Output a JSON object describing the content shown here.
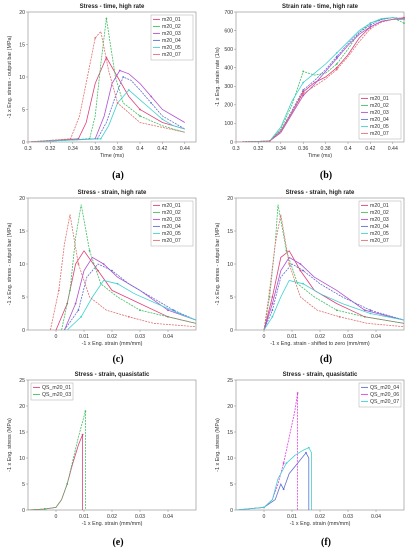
{
  "chart_data": [
    {
      "id": "a",
      "type": "line",
      "caption": "(a)",
      "title": "Stress - time, high rate",
      "xlabel": "Time (ms)",
      "ylabel": "-1 x Eng. stress - output bar (MPa)",
      "xlim": [
        0.3,
        0.45
      ],
      "ylim": [
        0,
        20
      ],
      "xticks": [
        0.3,
        0.32,
        0.34,
        0.36,
        0.38,
        0.4,
        0.42,
        0.44
      ],
      "xtick_labels": [
        "0.3",
        "0.32",
        "0.34",
        "0.36",
        "0.38",
        "0.4",
        "0.42",
        "0.44"
      ],
      "yticks": [
        0,
        5,
        10,
        15,
        20
      ],
      "ytick_labels": [
        "0",
        "5",
        "10",
        "15",
        "20"
      ],
      "legend_position": "top-right",
      "series": [
        {
          "name": "m20_01",
          "color": "#e0407a",
          "x": [
            0.3,
            0.345,
            0.352,
            0.36,
            0.37,
            0.38,
            0.39,
            0.4,
            0.42,
            0.44
          ],
          "y": [
            0,
            0.5,
            3,
            9,
            13,
            10,
            7,
            5,
            3,
            2
          ]
        },
        {
          "name": "m20_02",
          "color": "#3fbf5f",
          "x": [
            0.3,
            0.355,
            0.36,
            0.365,
            0.37,
            0.378,
            0.385,
            0.4,
            0.42,
            0.44
          ],
          "y": [
            0,
            0.5,
            4,
            12,
            19,
            10,
            6,
            4,
            2.5,
            1.5
          ]
        },
        {
          "name": "m20_03",
          "color": "#b050d0",
          "x": [
            0.3,
            0.36,
            0.368,
            0.375,
            0.382,
            0.39,
            0.4,
            0.41,
            0.42,
            0.44
          ],
          "y": [
            0,
            0.5,
            4,
            9,
            11,
            10.5,
            9,
            7,
            5,
            3
          ]
        },
        {
          "name": "m20_04",
          "color": "#6070d0",
          "x": [
            0.3,
            0.362,
            0.37,
            0.378,
            0.385,
            0.392,
            0.4,
            0.41,
            0.42,
            0.44
          ],
          "y": [
            0,
            0.5,
            3,
            7,
            10,
            9.5,
            8,
            6,
            4,
            2
          ]
        },
        {
          "name": "m20_05",
          "color": "#40d0d0",
          "x": [
            0.3,
            0.365,
            0.372,
            0.38,
            0.39,
            0.4,
            0.41,
            0.42,
            0.43,
            0.44
          ],
          "y": [
            0,
            0.5,
            2.5,
            6,
            8,
            6.5,
            5,
            3.5,
            2.5,
            2
          ]
        },
        {
          "name": "m20_07",
          "color": "#e07070",
          "x": [
            0.3,
            0.338,
            0.346,
            0.353,
            0.36,
            0.365,
            0.372,
            0.38,
            0.4,
            0.44
          ],
          "y": [
            0,
            0.5,
            4,
            10,
            16,
            17,
            11,
            6,
            3,
            1.5
          ]
        }
      ]
    },
    {
      "id": "b",
      "type": "line",
      "caption": "(b)",
      "title": "Strain rate - time, high rate",
      "xlabel": "Time (ms)",
      "ylabel": "-1 x Eng. strain rate (1/s)",
      "xlim": [
        0.3,
        0.45
      ],
      "ylim": [
        0,
        700
      ],
      "xticks": [
        0.3,
        0.32,
        0.34,
        0.36,
        0.38,
        0.4,
        0.42,
        0.44
      ],
      "xtick_labels": [
        "0.3",
        "0.32",
        "0.34",
        "0.36",
        "0.38",
        "0.4",
        "0.42",
        "0.44"
      ],
      "yticks": [
        0,
        100,
        200,
        300,
        400,
        500,
        600,
        700
      ],
      "ytick_labels": [
        "0",
        "100",
        "200",
        "300",
        "400",
        "500",
        "600",
        "700"
      ],
      "legend_position": "bottom-right",
      "series": [
        {
          "name": "m20_01",
          "color": "#e0407a",
          "x": [
            0.3,
            0.33,
            0.34,
            0.35,
            0.36,
            0.37,
            0.38,
            0.39,
            0.4,
            0.41,
            0.42,
            0.43,
            0.44,
            0.45
          ],
          "y": [
            0,
            5,
            60,
            160,
            270,
            320,
            350,
            400,
            470,
            560,
            620,
            650,
            660,
            670
          ]
        },
        {
          "name": "m20_02",
          "color": "#3fbf5f",
          "x": [
            0.3,
            0.33,
            0.34,
            0.35,
            0.36,
            0.37,
            0.38,
            0.39,
            0.4,
            0.41,
            0.42,
            0.43,
            0.44,
            0.45
          ],
          "y": [
            0,
            5,
            70,
            200,
            380,
            360,
            370,
            420,
            500,
            590,
            640,
            660,
            670,
            640
          ]
        },
        {
          "name": "m20_03",
          "color": "#b050d0",
          "x": [
            0.3,
            0.33,
            0.34,
            0.35,
            0.36,
            0.37,
            0.38,
            0.39,
            0.4,
            0.41,
            0.42,
            0.43,
            0.44,
            0.45
          ],
          "y": [
            0,
            5,
            50,
            150,
            250,
            310,
            380,
            450,
            520,
            580,
            620,
            650,
            660,
            660
          ]
        },
        {
          "name": "m20_04",
          "color": "#6070d0",
          "x": [
            0.3,
            0.33,
            0.34,
            0.35,
            0.36,
            0.37,
            0.38,
            0.39,
            0.4,
            0.41,
            0.42,
            0.43,
            0.44,
            0.45
          ],
          "y": [
            0,
            5,
            60,
            170,
            280,
            330,
            390,
            460,
            530,
            590,
            630,
            660,
            670,
            665
          ]
        },
        {
          "name": "m20_05",
          "color": "#40d0d0",
          "x": [
            0.3,
            0.33,
            0.34,
            0.35,
            0.36,
            0.37,
            0.38,
            0.39,
            0.4,
            0.41,
            0.42,
            0.43,
            0.44,
            0.45
          ],
          "y": [
            0,
            5,
            80,
            220,
            320,
            370,
            420,
            480,
            540,
            600,
            640,
            665,
            670,
            660
          ]
        },
        {
          "name": "m20_07",
          "color": "#e07070",
          "x": [
            0.3,
            0.33,
            0.34,
            0.35,
            0.36,
            0.37,
            0.38,
            0.39,
            0.4,
            0.41,
            0.42,
            0.43,
            0.44,
            0.45
          ],
          "y": [
            0,
            5,
            55,
            160,
            260,
            300,
            340,
            390,
            460,
            540,
            610,
            645,
            660,
            665
          ]
        }
      ]
    },
    {
      "id": "c",
      "type": "line",
      "caption": "(c)",
      "title": "Stress - strain, high rate",
      "xlabel": "-1 x Eng. strain (mm/mm)",
      "ylabel": "-1 x Eng. stress - output bar (MPa)",
      "xlim": [
        -0.01,
        0.05
      ],
      "ylim": [
        0,
        20
      ],
      "xticks": [
        0,
        0.01,
        0.02,
        0.03,
        0.04
      ],
      "xtick_labels": [
        "0",
        "0.01",
        "0.02",
        "0.03",
        "0.04"
      ],
      "yticks": [
        0,
        5,
        10,
        15,
        20
      ],
      "ytick_labels": [
        "0",
        "5",
        "10",
        "15",
        "20"
      ],
      "legend_position": "top-right",
      "series": [
        {
          "name": "m20_01",
          "color": "#e0407a",
          "x": [
            0,
            0.004,
            0.007,
            0.01,
            0.015,
            0.02,
            0.03,
            0.04,
            0.05
          ],
          "y": [
            0,
            4,
            10,
            12,
            9,
            6,
            4,
            2,
            1
          ]
        },
        {
          "name": "m20_02",
          "color": "#3fbf5f",
          "x": [
            0.002,
            0.005,
            0.007,
            0.009,
            0.012,
            0.016,
            0.022,
            0.03,
            0.04,
            0.05
          ],
          "y": [
            0,
            6,
            14,
            19,
            12,
            7,
            5,
            3,
            2,
            1
          ]
        },
        {
          "name": "m20_03",
          "color": "#b050d0",
          "x": [
            0.003,
            0.007,
            0.01,
            0.013,
            0.017,
            0.022,
            0.03,
            0.04,
            0.05
          ],
          "y": [
            0,
            4,
            9,
            11,
            10,
            8,
            6,
            3,
            1.5
          ]
        },
        {
          "name": "m20_04",
          "color": "#6070d0",
          "x": [
            0.003,
            0.008,
            0.011,
            0.015,
            0.02,
            0.026,
            0.034,
            0.042,
            0.05
          ],
          "y": [
            0,
            3,
            8,
            10,
            9,
            7,
            5,
            3,
            1.5
          ]
        },
        {
          "name": "m20_05",
          "color": "#40d0d0",
          "x": [
            0.004,
            0.009,
            0.013,
            0.017,
            0.022,
            0.028,
            0.036,
            0.044,
            0.05
          ],
          "y": [
            0,
            2,
            5,
            7.5,
            7,
            5.5,
            4,
            2.5,
            1.5
          ]
        },
        {
          "name": "m20_07",
          "color": "#e07070",
          "x": [
            -0.002,
            0.001,
            0.003,
            0.005,
            0.008,
            0.012,
            0.018,
            0.026,
            0.035,
            0.05
          ],
          "y": [
            0,
            6,
            13,
            17.5,
            10,
            5,
            3,
            2,
            1,
            0.5
          ]
        }
      ]
    },
    {
      "id": "d",
      "type": "line",
      "caption": "(d)",
      "title": "Stress - strain, high rate",
      "xlabel": "-1 x Eng. strain - shifted to zero (mm/mm)",
      "ylabel": "-1 x Eng. stress - output bar (MPa)",
      "xlim": [
        -0.01,
        0.05
      ],
      "ylim": [
        0,
        20
      ],
      "xticks": [
        0,
        0.01,
        0.02,
        0.03,
        0.04
      ],
      "xtick_labels": [
        "0",
        "0.01",
        "0.02",
        "0.03",
        "0.04"
      ],
      "yticks": [
        0,
        5,
        10,
        15,
        20
      ],
      "ytick_labels": [
        "0",
        "5",
        "10",
        "15",
        "20"
      ],
      "legend_position": "top-right",
      "series": [
        {
          "name": "m20_01",
          "color": "#e0407a",
          "x": [
            0,
            0.003,
            0.006,
            0.009,
            0.013,
            0.018,
            0.026,
            0.036,
            0.05
          ],
          "y": [
            0,
            5,
            11,
            12,
            9,
            6,
            4,
            2,
            1
          ]
        },
        {
          "name": "m20_02",
          "color": "#3fbf5f",
          "x": [
            0,
            0.002,
            0.004,
            0.005,
            0.008,
            0.012,
            0.018,
            0.026,
            0.036,
            0.05
          ],
          "y": [
            0,
            5,
            13,
            19,
            12,
            7,
            5,
            3,
            2,
            1
          ]
        },
        {
          "name": "m20_03",
          "color": "#b050d0",
          "x": [
            0,
            0.003,
            0.006,
            0.009,
            0.013,
            0.018,
            0.026,
            0.036,
            0.05
          ],
          "y": [
            0,
            4,
            9,
            11,
            10,
            8,
            6,
            3,
            1.5
          ]
        },
        {
          "name": "m20_04",
          "color": "#6070d0",
          "x": [
            0,
            0.003,
            0.006,
            0.01,
            0.014,
            0.02,
            0.028,
            0.038,
            0.05
          ],
          "y": [
            0,
            3,
            8,
            10,
            9,
            7,
            5,
            3,
            1.5
          ]
        },
        {
          "name": "m20_05",
          "color": "#40d0d0",
          "x": [
            0,
            0.003,
            0.006,
            0.009,
            0.014,
            0.02,
            0.028,
            0.038,
            0.05
          ],
          "y": [
            0,
            2,
            5,
            7.5,
            7,
            5.5,
            4,
            2.5,
            1.5
          ]
        },
        {
          "name": "m20_07",
          "color": "#e07070",
          "x": [
            0,
            0.002,
            0.004,
            0.006,
            0.009,
            0.013,
            0.019,
            0.027,
            0.037,
            0.05
          ],
          "y": [
            0,
            6,
            13,
            17.5,
            10,
            5,
            3,
            2,
            1,
            0.5
          ]
        }
      ]
    },
    {
      "id": "e",
      "type": "line",
      "caption": "(e)",
      "title": "Stress - strain, quasistatic",
      "xlabel": "-1 x Eng. strain (mm/mm)",
      "ylabel": "-1 x Eng. stress (MPa)",
      "xlim": [
        -0.01,
        0.05
      ],
      "ylim": [
        0,
        25
      ],
      "xticks": [
        0,
        0.01,
        0.02,
        0.03,
        0.04
      ],
      "xtick_labels": [
        "0",
        "0.01",
        "0.02",
        "0.03",
        "0.04"
      ],
      "yticks": [
        0,
        5,
        10,
        15,
        20,
        25
      ],
      "ytick_labels": [
        "0",
        "5",
        "10",
        "15",
        "20",
        "25"
      ],
      "legend_position": "top-left",
      "series": [
        {
          "name": "QS_m20_01",
          "color": "#e0407a",
          "x": [
            -0.01,
            -0.004,
            0,
            0.002,
            0.004,
            0.006,
            0.008,
            0.0095,
            0.0095
          ],
          "y": [
            0,
            0.2,
            0.5,
            2,
            5,
            9,
            12.5,
            14.5,
            0
          ]
        },
        {
          "name": "QS_m20_03",
          "color": "#3fbf5f",
          "x": [
            -0.01,
            -0.004,
            0,
            0.002,
            0.004,
            0.006,
            0.008,
            0.0105,
            0.0105
          ],
          "y": [
            0,
            0.2,
            0.5,
            2,
            5,
            9.5,
            14,
            19,
            0
          ]
        }
      ]
    },
    {
      "id": "f",
      "type": "line",
      "caption": "(f)",
      "title": "Stress - strain, quasistatic",
      "xlabel": "-1 x Eng. strain (mm/mm)",
      "ylabel": "-1 x Eng. stress (MPa)",
      "xlim": [
        -0.01,
        0.05
      ],
      "ylim": [
        0,
        25
      ],
      "xticks": [
        0,
        0.01,
        0.02,
        0.03,
        0.04
      ],
      "xtick_labels": [
        "0",
        "0.01",
        "0.02",
        "0.03",
        "0.04"
      ],
      "yticks": [
        0,
        5,
        10,
        15,
        20,
        25
      ],
      "ytick_labels": [
        "0",
        "5",
        "10",
        "15",
        "20",
        "25"
      ],
      "legend_position": "top-right",
      "series": [
        {
          "name": "QS_m20_04",
          "color": "#6070d0",
          "x": [
            -0.01,
            0,
            0.004,
            0.006,
            0.007,
            0.009,
            0.012,
            0.015,
            0.016,
            0.016
          ],
          "y": [
            0,
            0.5,
            2,
            5,
            4,
            7,
            9,
            11,
            10,
            0
          ]
        },
        {
          "name": "QS_m20_06",
          "color": "#e040e0",
          "x": [
            -0.01,
            0,
            0.003,
            0.005,
            0.007,
            0.009,
            0.011,
            0.012,
            0.012
          ],
          "y": [
            0,
            0.5,
            2,
            5,
            9,
            14,
            19,
            22.5,
            0
          ]
        },
        {
          "name": "QS_m20_07",
          "color": "#40d0d0",
          "x": [
            -0.01,
            0,
            0.003,
            0.005,
            0.008,
            0.011,
            0.014,
            0.016,
            0.017,
            0.017
          ],
          "y": [
            0,
            0.5,
            2,
            6,
            9,
            10.5,
            11.5,
            12,
            11,
            0
          ]
        }
      ]
    }
  ]
}
